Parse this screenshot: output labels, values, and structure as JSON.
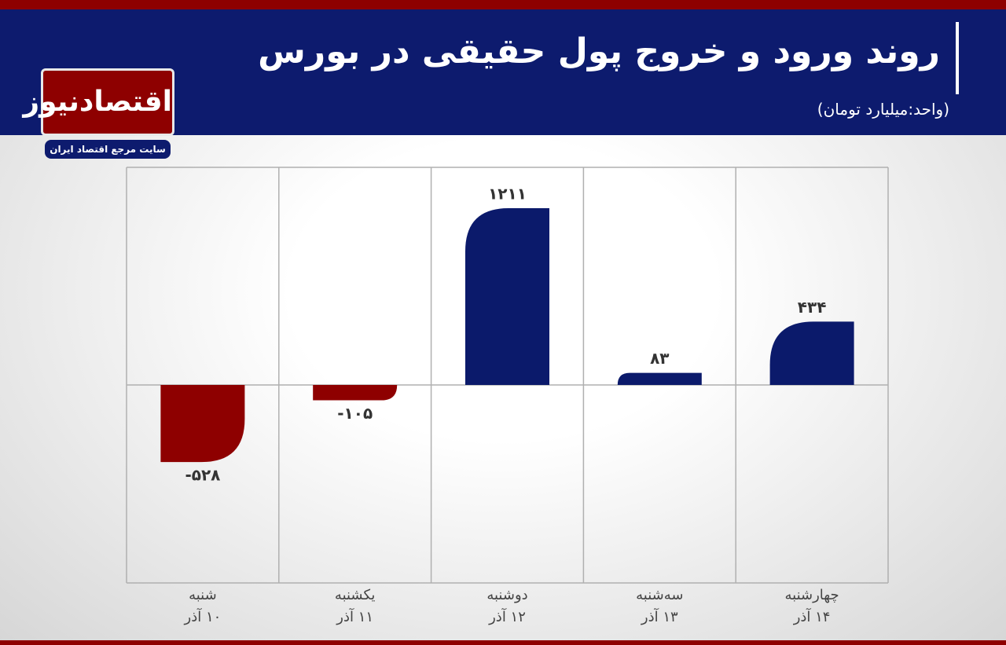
{
  "logo": {
    "name": "اقتصادنیوز",
    "tagline": "سایت مرجع اقتصاد ایران"
  },
  "chart_data": {
    "type": "bar",
    "title": "روند ورود و خروج پول حقیقی در بورس",
    "subtitle": "(واحد:میلیارد تومان)",
    "categories": [
      [
        "شنبه",
        "۱۰ آذر"
      ],
      [
        "یکشنبه",
        "۱۱ آذر"
      ],
      [
        "دوشنبه",
        "۱۲ آذر"
      ],
      [
        "سه‌شنبه",
        "۱۳ آذر"
      ],
      [
        "چهارشنبه",
        "۱۴ آذر"
      ]
    ],
    "values": [
      -528,
      -105,
      1211,
      83,
      434
    ],
    "value_labels": [
      "-۵۲۸",
      "-۱۰۵",
      "۱۲۱۱",
      "۸۳",
      "۴۳۴"
    ],
    "positive_color": "#0b1a6b",
    "negative_color": "#8e0000",
    "ylim": [
      -1356,
      1491
    ],
    "grid": true
  }
}
